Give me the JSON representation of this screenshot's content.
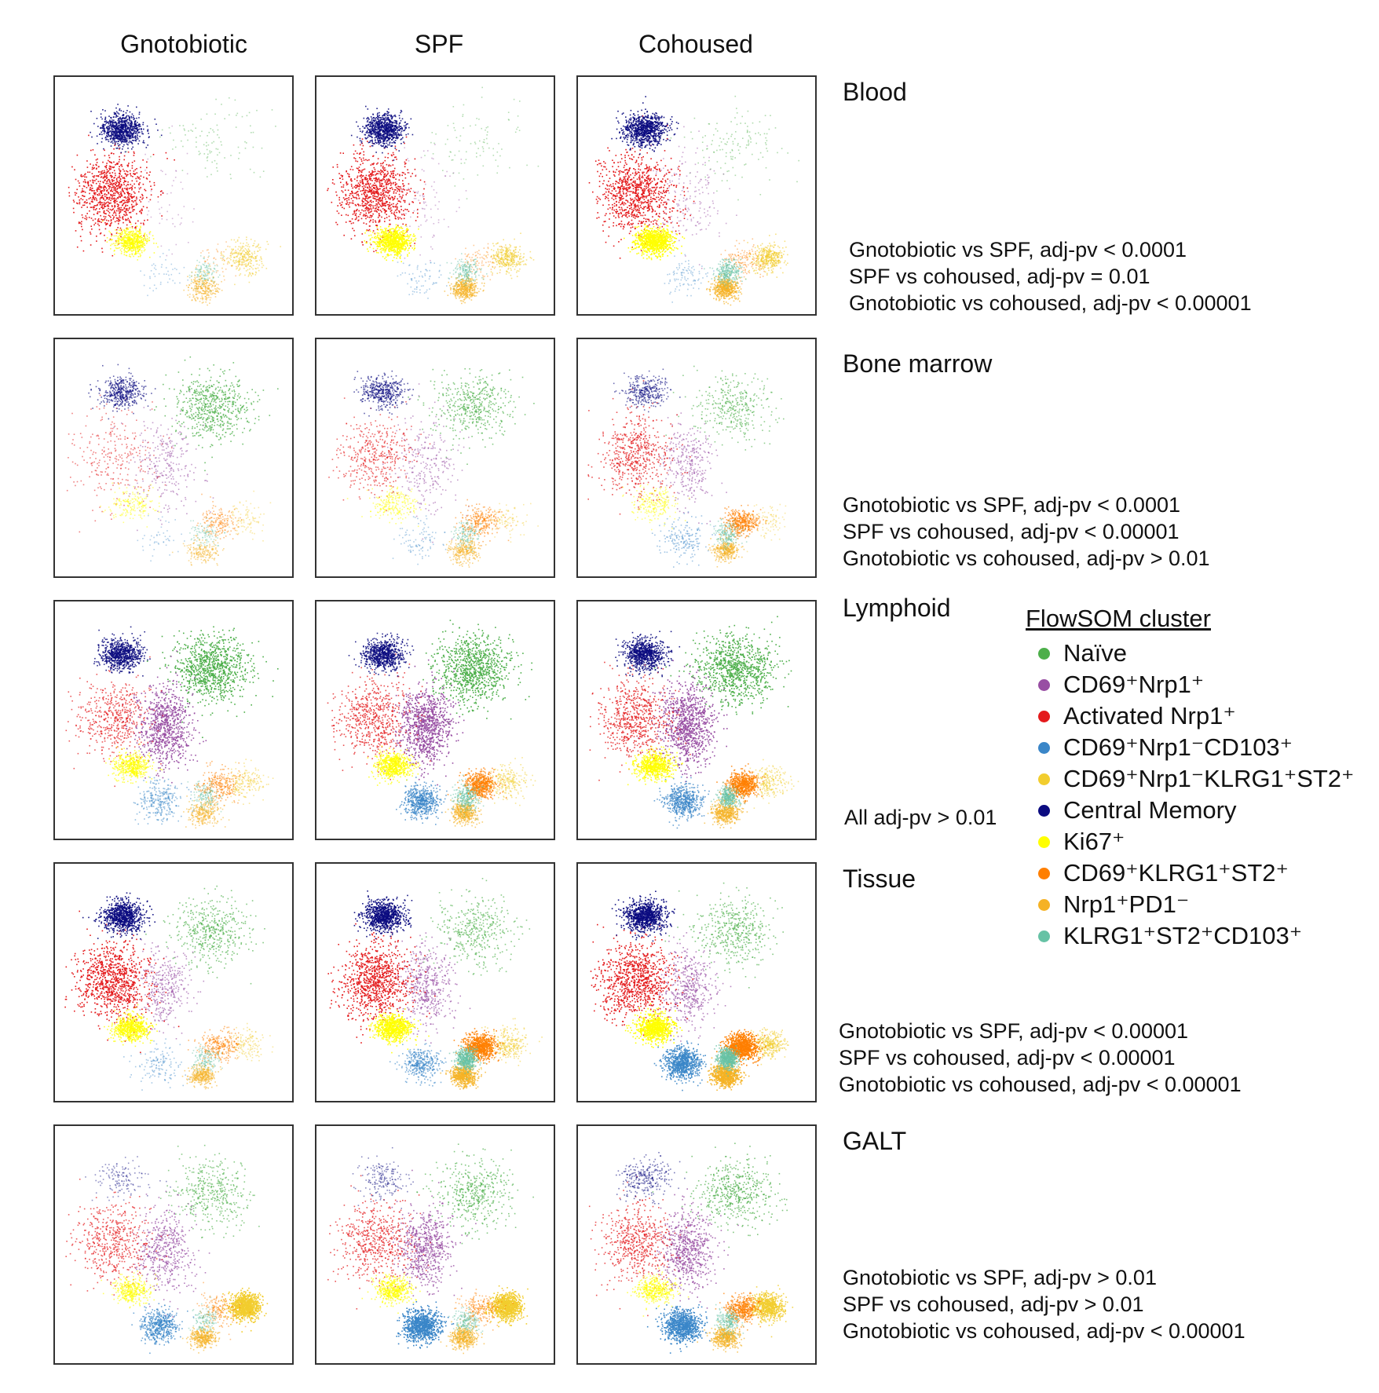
{
  "columns": [
    "Gnotobiotic",
    "SPF",
    "Cohoused"
  ],
  "rows": [
    {
      "title": "Blood",
      "stats": [
        "Gnotobiotic vs SPF, adj-pv < 0.0001",
        "SPF vs cohoused, adj-pv = 0.01",
        "Gnotobiotic vs cohoused, adj-pv < 0.00001"
      ]
    },
    {
      "title": "Bone marrow",
      "stats": [
        "Gnotobiotic vs SPF, adj-pv < 0.0001",
        "SPF vs cohoused, adj-pv < 0.00001",
        "Gnotobiotic vs cohoused, adj-pv > 0.01"
      ]
    },
    {
      "title": "Lymphoid",
      "stats": [
        "All adj-pv > 0.01"
      ]
    },
    {
      "title": "Tissue",
      "stats": [
        "Gnotobiotic vs SPF, adj-pv < 0.00001",
        "SPF vs cohoused, adj-pv < 0.00001",
        "Gnotobiotic vs cohoused, adj-pv < 0.00001"
      ]
    },
    {
      "title": "GALT",
      "stats": [
        "Gnotobiotic vs SPF, adj-pv > 0.01",
        "SPF vs cohoused, adj-pv > 0.01",
        "Gnotobiotic vs cohoused, adj-pv < 0.00001"
      ]
    }
  ],
  "legend": {
    "title": "FlowSOM cluster",
    "items": [
      {
        "label": "Naïve",
        "color": "#4daf4a"
      },
      {
        "label": "CD69⁺Nrp1⁺",
        "color": "#984ea3"
      },
      {
        "label": "Activated Nrp1⁺",
        "color": "#e41a1c"
      },
      {
        "label": "CD69⁺Nrp1⁻CD103⁺",
        "color": "#3a86c8"
      },
      {
        "label": "CD69⁺Nrp1⁻KLRG1⁺ST2⁺",
        "color": "#f2cd2e"
      },
      {
        "label": "Central Memory",
        "color": "#0b0b80"
      },
      {
        "label": "Ki67⁺",
        "color": "#ffff00"
      },
      {
        "label": "CD69⁺KLRG1⁺ST2⁺",
        "color": "#ff7f00"
      },
      {
        "label": "Nrp1⁺PD1⁻",
        "color": "#f5b225"
      },
      {
        "label": "KLRG1⁺ST2⁺CD103⁺",
        "color": "#66c2a5"
      }
    ]
  },
  "chart_data": {
    "type": "scatter",
    "title": "",
    "xlabel": "",
    "ylabel": "",
    "series": [
      {
        "name": "Naïve"
      },
      {
        "name": "CD69⁺Nrp1⁺"
      },
      {
        "name": "Activated Nrp1⁺"
      },
      {
        "name": "CD69⁺Nrp1⁻CD103⁺"
      },
      {
        "name": "CD69⁺Nrp1⁻KLRG1⁺ST2⁺"
      },
      {
        "name": "Central Memory"
      },
      {
        "name": "Ki67⁺"
      },
      {
        "name": "CD69⁺KLRG1⁺ST2⁺"
      },
      {
        "name": "Nrp1⁺PD1⁻"
      },
      {
        "name": "KLRG1⁺ST2⁺CD103⁺"
      }
    ],
    "panels": [
      {
        "tissue": "Blood",
        "group": "Gnotobiotic",
        "density": {
          "Naïve": 0.12,
          "CD69⁺Nrp1⁺": 0.06,
          "Activated Nrp1⁺": 1.0,
          "CD69⁺Nrp1⁻CD103⁺": 0.05,
          "CD69⁺Nrp1⁻KLRG1⁺ST2⁺": 0.3,
          "Central Memory": 0.85,
          "Ki67⁺": 0.6,
          "CD69⁺KLRG1⁺ST2⁺": 0.05,
          "Nrp1⁺PD1⁻": 0.3,
          "KLRG1⁺ST2⁺CD103⁺": 0.12
        }
      },
      {
        "tissue": "Blood",
        "group": "SPF",
        "density": {
          "Naïve": 0.1,
          "CD69⁺Nrp1⁺": 0.1,
          "Activated Nrp1⁺": 1.0,
          "CD69⁺Nrp1⁻CD103⁺": 0.08,
          "CD69⁺Nrp1⁻KLRG1⁺ST2⁺": 0.35,
          "Central Memory": 0.85,
          "Ki67⁺": 0.85,
          "CD69⁺KLRG1⁺ST2⁺": 0.1,
          "Nrp1⁺PD1⁻": 0.45,
          "KLRG1⁺ST2⁺CD103⁺": 0.2
        }
      },
      {
        "tissue": "Blood",
        "group": "Cohoused",
        "density": {
          "Naïve": 0.15,
          "CD69⁺Nrp1⁺": 0.2,
          "Activated Nrp1⁺": 1.0,
          "CD69⁺Nrp1⁻CD103⁺": 0.1,
          "CD69⁺Nrp1⁻KLRG1⁺ST2⁺": 0.4,
          "Central Memory": 0.9,
          "Ki67⁺": 0.95,
          "CD69⁺KLRG1⁺ST2⁺": 0.15,
          "Nrp1⁺PD1⁻": 0.55,
          "KLRG1⁺ST2⁺CD103⁺": 0.3
        }
      },
      {
        "tissue": "Bone marrow",
        "group": "Gnotobiotic",
        "density": {
          "Naïve": 0.65,
          "CD69⁺Nrp1⁺": 0.3,
          "Activated Nrp1⁺": 0.3,
          "CD69⁺Nrp1⁻CD103⁺": 0.05,
          "CD69⁺Nrp1⁻KLRG1⁺ST2⁺": 0.1,
          "Central Memory": 0.45,
          "Ki67⁺": 0.2,
          "CD69⁺KLRG1⁺ST2⁺": 0.2,
          "Nrp1⁺PD1⁻": 0.2,
          "KLRG1⁺ST2⁺CD103⁺": 0.1
        }
      },
      {
        "tissue": "Bone marrow",
        "group": "SPF",
        "density": {
          "Naïve": 0.5,
          "CD69⁺Nrp1⁺": 0.3,
          "Activated Nrp1⁺": 0.45,
          "CD69⁺Nrp1⁻CD103⁺": 0.1,
          "CD69⁺Nrp1⁻KLRG1⁺ST2⁺": 0.1,
          "Central Memory": 0.45,
          "Ki67⁺": 0.25,
          "CD69⁺KLRG1⁺ST2⁺": 0.3,
          "Nrp1⁺PD1⁻": 0.3,
          "KLRG1⁺ST2⁺CD103⁺": 0.15
        }
      },
      {
        "tissue": "Bone marrow",
        "group": "Cohoused",
        "density": {
          "Naïve": 0.4,
          "CD69⁺Nrp1⁺": 0.35,
          "Activated Nrp1⁺": 0.6,
          "CD69⁺Nrp1⁻CD103⁺": 0.2,
          "CD69⁺Nrp1⁻KLRG1⁺ST2⁺": 0.1,
          "Central Memory": 0.35,
          "Ki67⁺": 0.25,
          "CD69⁺KLRG1⁺ST2⁺": 0.45,
          "Nrp1⁺PD1⁻": 0.35,
          "KLRG1⁺ST2⁺CD103⁺": 0.2
        }
      },
      {
        "tissue": "Lymphoid",
        "group": "Gnotobiotic",
        "density": {
          "Naïve": 1.0,
          "CD69⁺Nrp1⁺": 0.9,
          "Activated Nrp1⁺": 0.55,
          "CD69⁺Nrp1⁻CD103⁺": 0.3,
          "CD69⁺Nrp1⁻KLRG1⁺ST2⁺": 0.2,
          "Central Memory": 0.8,
          "Ki67⁺": 0.5,
          "CD69⁺KLRG1⁺ST2⁺": 0.3,
          "Nrp1⁺PD1⁻": 0.3,
          "KLRG1⁺ST2⁺CD103⁺": 0.15
        }
      },
      {
        "tissue": "Lymphoid",
        "group": "SPF",
        "density": {
          "Naïve": 1.0,
          "CD69⁺Nrp1⁺": 1.0,
          "Activated Nrp1⁺": 0.65,
          "CD69⁺Nrp1⁻CD103⁺": 0.6,
          "CD69⁺Nrp1⁻KLRG1⁺ST2⁺": 0.25,
          "Central Memory": 0.8,
          "Ki67⁺": 0.65,
          "CD69⁺KLRG1⁺ST2⁺": 0.6,
          "Nrp1⁺PD1⁻": 0.45,
          "KLRG1⁺ST2⁺CD103⁺": 0.3
        }
      },
      {
        "tissue": "Lymphoid",
        "group": "Cohoused",
        "density": {
          "Naïve": 1.0,
          "CD69⁺Nrp1⁺": 1.0,
          "Activated Nrp1⁺": 0.7,
          "CD69⁺Nrp1⁻CD103⁺": 0.6,
          "CD69⁺Nrp1⁻KLRG1⁺ST2⁺": 0.25,
          "Central Memory": 0.85,
          "Ki67⁺": 0.75,
          "CD69⁺KLRG1⁺ST2⁺": 0.7,
          "Nrp1⁺PD1⁻": 0.5,
          "KLRG1⁺ST2⁺CD103⁺": 0.35
        }
      },
      {
        "tissue": "Tissue",
        "group": "Gnotobiotic",
        "density": {
          "Naïve": 0.5,
          "CD69⁺Nrp1⁺": 0.4,
          "Activated Nrp1⁺": 1.0,
          "CD69⁺Nrp1⁻CD103⁺": 0.15,
          "CD69⁺Nrp1⁻KLRG1⁺ST2⁺": 0.15,
          "Central Memory": 0.9,
          "Ki67⁺": 0.7,
          "CD69⁺KLRG1⁺ST2⁺": 0.3,
          "Nrp1⁺PD1⁻": 0.35,
          "KLRG1⁺ST2⁺CD103⁺": 0.15
        }
      },
      {
        "tissue": "Tissue",
        "group": "SPF",
        "density": {
          "Naïve": 0.45,
          "CD69⁺Nrp1⁺": 0.5,
          "Activated Nrp1⁺": 1.0,
          "CD69⁺Nrp1⁻CD103⁺": 0.4,
          "CD69⁺Nrp1⁻KLRG1⁺ST2⁺": 0.3,
          "Central Memory": 0.9,
          "Ki67⁺": 0.85,
          "CD69⁺KLRG1⁺ST2⁺": 0.8,
          "Nrp1⁺PD1⁻": 0.65,
          "KLRG1⁺ST2⁺CD103⁺": 0.5
        }
      },
      {
        "tissue": "Tissue",
        "group": "Cohoused",
        "density": {
          "Naïve": 0.5,
          "CD69⁺Nrp1⁺": 0.5,
          "Activated Nrp1⁺": 1.0,
          "CD69⁺Nrp1⁻CD103⁺": 0.85,
          "CD69⁺Nrp1⁻KLRG1⁺ST2⁺": 0.35,
          "Central Memory": 0.95,
          "Ki67⁺": 0.95,
          "CD69⁺KLRG1⁺ST2⁺": 0.95,
          "Nrp1⁺PD1⁻": 0.85,
          "KLRG1⁺ST2⁺CD103⁺": 0.6
        }
      },
      {
        "tissue": "GALT",
        "group": "Gnotobiotic",
        "density": {
          "Naïve": 0.45,
          "CD69⁺Nrp1⁺": 0.55,
          "Activated Nrp1⁺": 0.55,
          "CD69⁺Nrp1⁻CD103⁺": 0.55,
          "CD69⁺Nrp1⁻KLRG1⁺ST2⁺": 1.0,
          "Central Memory": 0.15,
          "Ki67⁺": 0.4,
          "CD69⁺KLRG1⁺ST2⁺": 0.2,
          "Nrp1⁺PD1⁻": 0.4,
          "KLRG1⁺ST2⁺CD103⁺": 0.15
        }
      },
      {
        "tissue": "GALT",
        "group": "SPF",
        "density": {
          "Naïve": 0.5,
          "CD69⁺Nrp1⁺": 0.7,
          "Activated Nrp1⁺": 0.6,
          "CD69⁺Nrp1⁻CD103⁺": 1.0,
          "CD69⁺Nrp1⁻KLRG1⁺ST2⁺": 1.0,
          "Central Memory": 0.2,
          "Ki67⁺": 0.5,
          "CD69⁺KLRG1⁺ST2⁺": 0.25,
          "Nrp1⁺PD1⁻": 0.45,
          "KLRG1⁺ST2⁺CD103⁺": 0.2
        }
      },
      {
        "tissue": "GALT",
        "group": "Cohoused",
        "density": {
          "Naïve": 0.55,
          "CD69⁺Nrp1⁺": 0.7,
          "Activated Nrp1⁺": 0.6,
          "CD69⁺Nrp1⁻CD103⁺": 0.95,
          "CD69⁺Nrp1⁻KLRG1⁺ST2⁺": 0.75,
          "Central Memory": 0.3,
          "Ki67⁺": 0.45,
          "CD69⁺KLRG1⁺ST2⁺": 0.5,
          "Nrp1⁺PD1⁻": 0.5,
          "KLRG1⁺ST2⁺CD103⁺": 0.25
        }
      }
    ],
    "legend_position": "right"
  }
}
